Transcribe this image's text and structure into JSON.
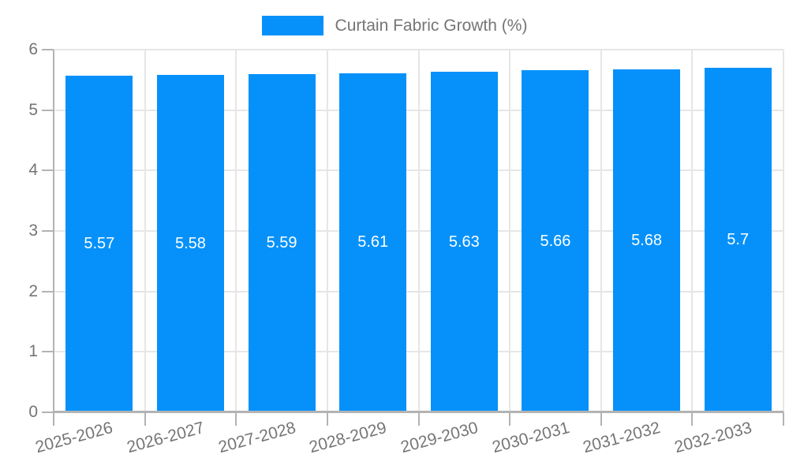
{
  "chart_data": {
    "type": "bar",
    "title": "Curtain Fabric Growth (%)",
    "legend_label": "Curtain Fabric Growth (%)",
    "legend_position": "top",
    "categories": [
      "2025-2026",
      "2026-2027",
      "2027-2028",
      "2028-2029",
      "2029-2030",
      "2030-2031",
      "2031-2032",
      "2032-2033"
    ],
    "values": [
      5.57,
      5.58,
      5.59,
      5.61,
      5.63,
      5.66,
      5.68,
      5.7
    ],
    "value_labels": [
      "5.57",
      "5.58",
      "5.59",
      "5.61",
      "5.63",
      "5.66",
      "5.68",
      "5.7"
    ],
    "xlabel": "",
    "ylabel": "",
    "ylim": [
      0,
      6
    ],
    "yticks": [
      0,
      1,
      2,
      3,
      4,
      5,
      6
    ],
    "grid": true,
    "bar_color": "#0691fa",
    "gridline_color": "#e6e6e6",
    "axis_color": "#b3b3b3",
    "axis_text_color": "#757575",
    "bar_label_color": "#ffffff"
  }
}
